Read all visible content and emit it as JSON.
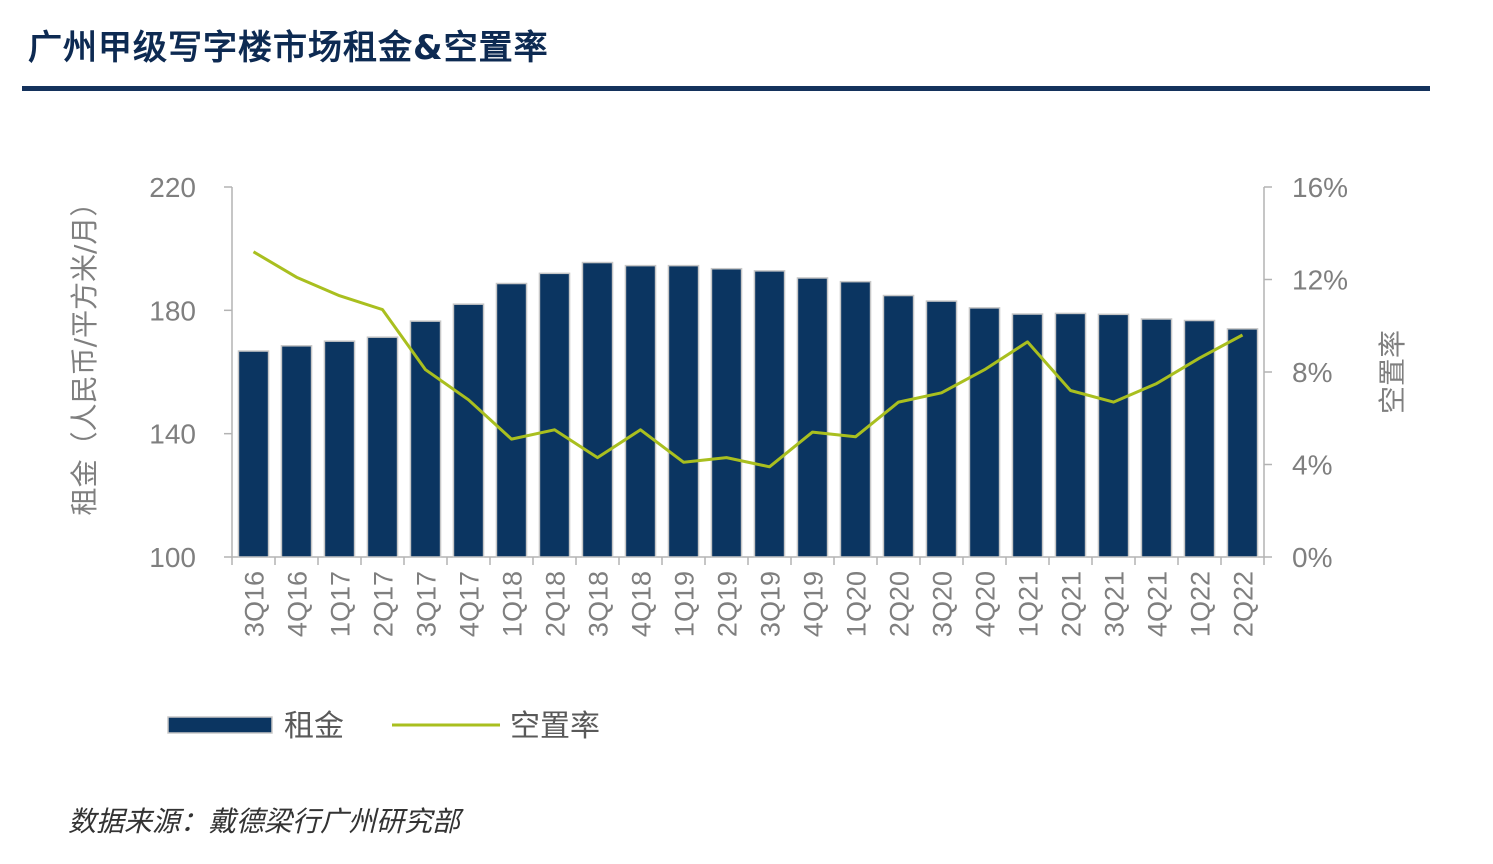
{
  "page": {
    "title": "广州甲级写字楼市场租金&空置率",
    "source": "数据来源：戴德梁行广州研究部"
  },
  "colors": {
    "title": "#0d2a52",
    "rule": "#14325c",
    "bar": "#0b3561",
    "bar_border": "#c7c7c7",
    "line": "#a9bf1f",
    "axis_text": "#7f7f7f",
    "axis_line": "#b3b3b3"
  },
  "chart_data": {
    "type": "bar",
    "categories": [
      "3Q16",
      "4Q16",
      "1Q17",
      "2Q17",
      "3Q17",
      "4Q17",
      "1Q18",
      "2Q18",
      "3Q18",
      "4Q18",
      "1Q19",
      "2Q19",
      "3Q19",
      "4Q19",
      "1Q20",
      "2Q20",
      "3Q20",
      "4Q20",
      "1Q21",
      "2Q21",
      "3Q21",
      "4Q21",
      "1Q22",
      "2Q22"
    ],
    "y_left": {
      "label": "租金（人民币/平方米/月）",
      "min": 100,
      "max": 220,
      "ticks": [
        100,
        140,
        180,
        220
      ],
      "tick_labels": [
        "100",
        "140",
        "180",
        "220"
      ]
    },
    "y_right": {
      "label": "空置率",
      "min": 0,
      "max": 16,
      "ticks": [
        0,
        4,
        8,
        12,
        16
      ],
      "tick_labels": [
        "0%",
        "4%",
        "8%",
        "12%",
        "16%"
      ]
    },
    "series": [
      {
        "name": "租金",
        "kind": "bar",
        "axis": "left",
        "values": [
          166.8,
          168.5,
          170.0,
          171.3,
          176.5,
          182.0,
          188.7,
          192.0,
          195.5,
          194.5,
          194.5,
          193.5,
          192.8,
          190.5,
          189.3,
          184.8,
          183.0,
          180.8,
          178.8,
          179.0,
          178.7,
          177.2,
          176.7,
          174.0
        ]
      },
      {
        "name": "空置率",
        "kind": "line",
        "axis": "right",
        "values": [
          13.2,
          12.1,
          11.3,
          10.7,
          8.1,
          6.8,
          5.1,
          5.5,
          4.3,
          5.5,
          4.1,
          4.3,
          3.9,
          5.4,
          5.2,
          6.7,
          7.1,
          8.1,
          9.3,
          7.2,
          6.7,
          7.5,
          8.6,
          9.6
        ]
      }
    ],
    "legend": {
      "position": "bottom-left",
      "items": [
        {
          "label": "租金",
          "kind": "bar"
        },
        {
          "label": "空置率",
          "kind": "line"
        }
      ]
    },
    "grid": false
  }
}
